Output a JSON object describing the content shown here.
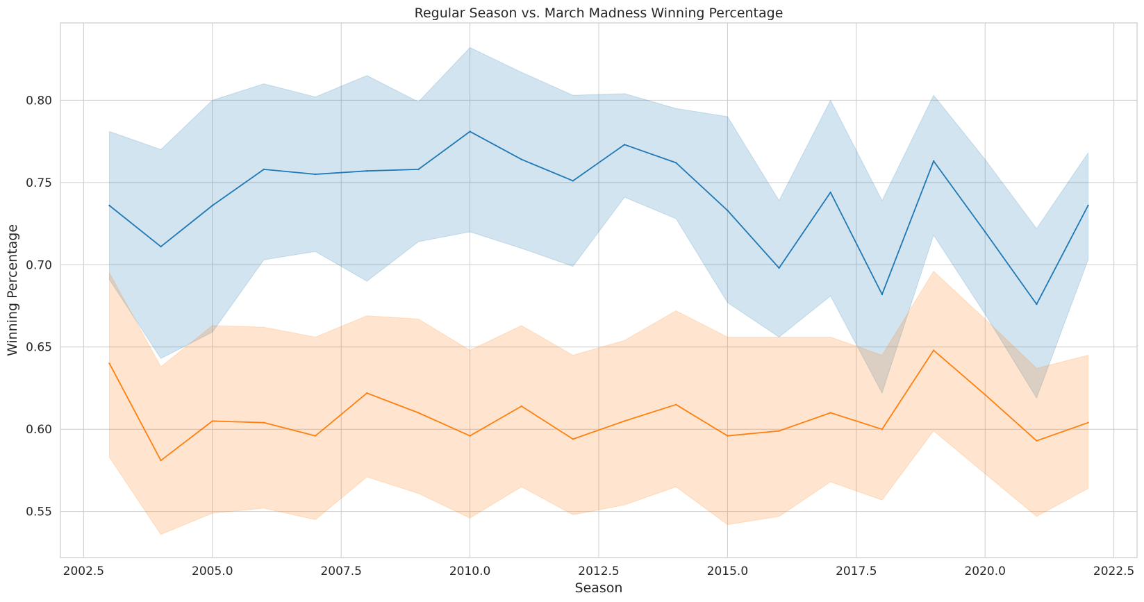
{
  "chart_data": {
    "type": "line",
    "title": "Regular Season vs. March Madness Winning Percentage",
    "xlabel": "Season",
    "ylabel": "Winning Percentage",
    "xlim": [
      2002.05,
      2022.95
    ],
    "ylim": [
      0.522,
      0.847
    ],
    "grid": true,
    "x_ticks": [
      2002.5,
      2005.0,
      2007.5,
      2010.0,
      2012.5,
      2015.0,
      2017.5,
      2020.0,
      2022.5
    ],
    "x_tick_labels": [
      "2002.5",
      "2005.0",
      "2007.5",
      "2010.0",
      "2012.5",
      "2015.0",
      "2017.5",
      "2020.0",
      "2022.5"
    ],
    "y_ticks": [
      0.55,
      0.6,
      0.65,
      0.7,
      0.75,
      0.8
    ],
    "y_tick_labels": [
      "0.55",
      "0.60",
      "0.65",
      "0.70",
      "0.75",
      "0.80"
    ],
    "x": [
      2003,
      2004,
      2005,
      2006,
      2007,
      2008,
      2009,
      2010,
      2011,
      2012,
      2013,
      2014,
      2015,
      2016,
      2017,
      2018,
      2019,
      2020,
      2021,
      2022
    ],
    "series": [
      {
        "color": "#1f77b4",
        "values": [
          0.736,
          0.711,
          0.736,
          0.758,
          0.755,
          0.757,
          0.758,
          0.781,
          0.764,
          0.751,
          0.773,
          0.762,
          0.733,
          0.698,
          0.744,
          0.682,
          0.763,
          0.72,
          0.676,
          0.736
        ],
        "lower": [
          0.691,
          0.643,
          0.659,
          0.703,
          0.708,
          0.69,
          0.714,
          0.72,
          0.71,
          0.699,
          0.741,
          0.728,
          0.677,
          0.656,
          0.681,
          0.622,
          0.718,
          0.67,
          0.619,
          0.703
        ],
        "upper": [
          0.781,
          0.77,
          0.8,
          0.81,
          0.802,
          0.815,
          0.799,
          0.832,
          0.817,
          0.803,
          0.804,
          0.795,
          0.79,
          0.739,
          0.8,
          0.739,
          0.803,
          0.764,
          0.722,
          0.768
        ]
      },
      {
        "color": "#ff7f0e",
        "values": [
          0.64,
          0.581,
          0.605,
          0.604,
          0.596,
          0.622,
          0.61,
          0.596,
          0.614,
          0.594,
          0.605,
          0.615,
          0.596,
          0.599,
          0.61,
          0.6,
          0.648,
          0.621,
          0.593,
          0.604
        ],
        "lower": [
          0.583,
          0.536,
          0.549,
          0.552,
          0.545,
          0.571,
          0.561,
          0.546,
          0.565,
          0.548,
          0.554,
          0.565,
          0.542,
          0.547,
          0.568,
          0.557,
          0.599,
          0.573,
          0.547,
          0.564
        ],
        "upper": [
          0.695,
          0.638,
          0.663,
          0.662,
          0.656,
          0.669,
          0.667,
          0.648,
          0.663,
          0.645,
          0.654,
          0.672,
          0.656,
          0.656,
          0.656,
          0.645,
          0.696,
          0.667,
          0.637,
          0.645
        ]
      }
    ]
  }
}
